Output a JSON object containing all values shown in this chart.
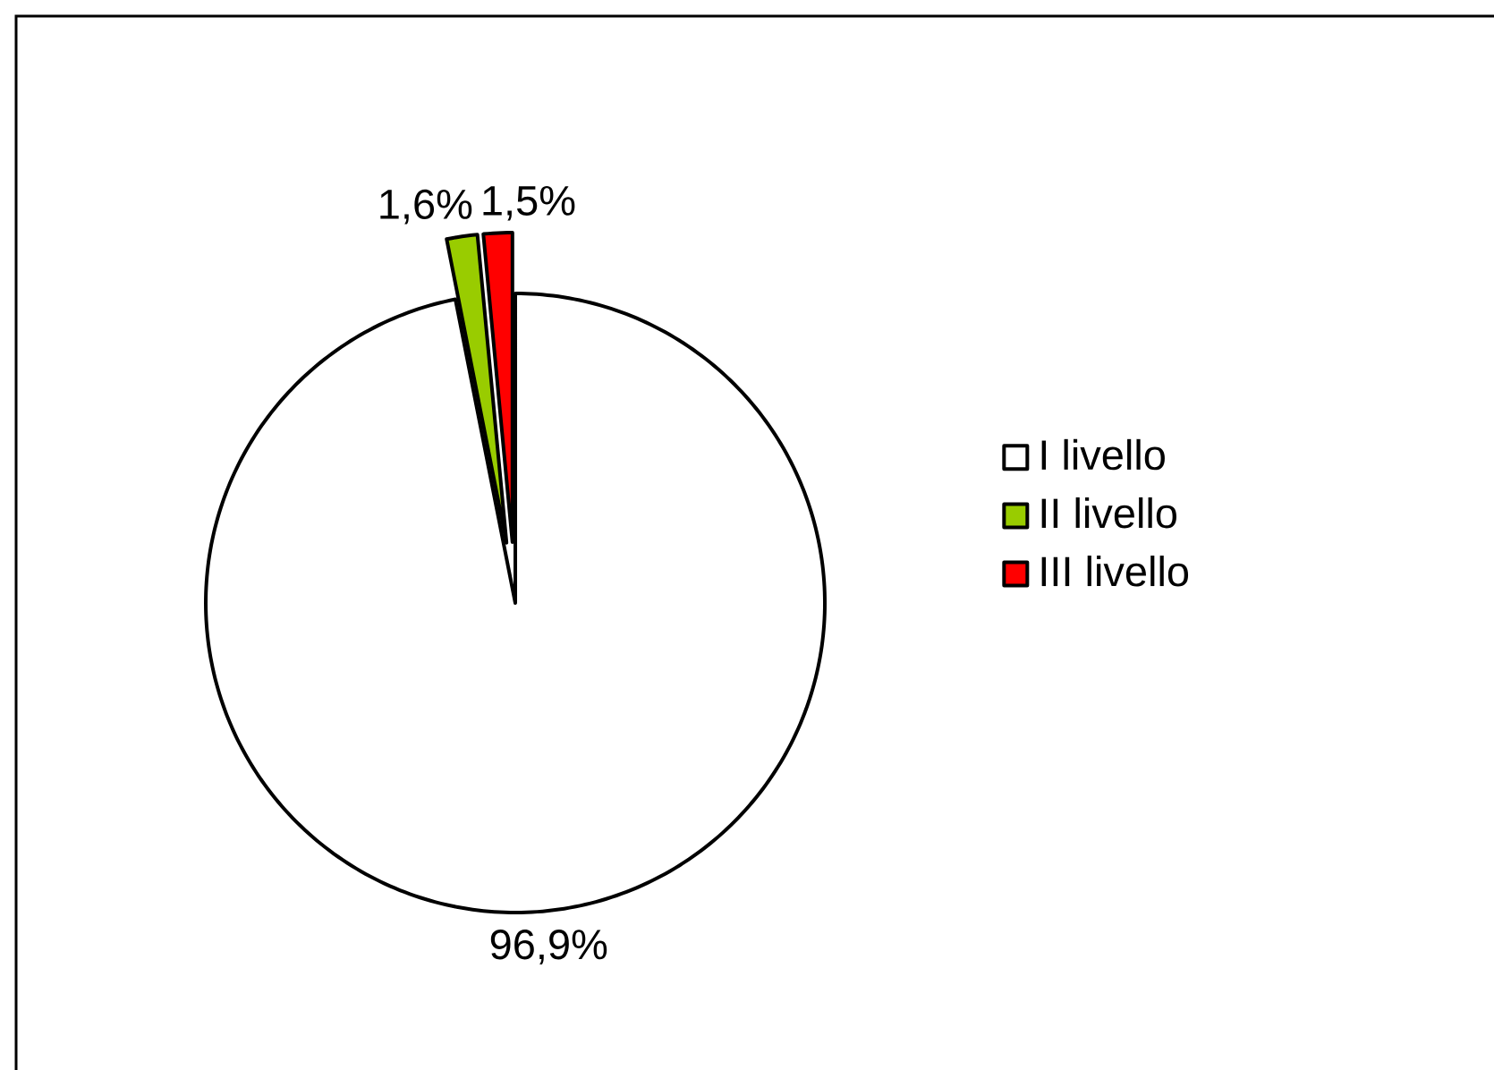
{
  "chart_data": {
    "type": "pie",
    "categories": [
      "I livello",
      "II livello",
      "III livello"
    ],
    "values": [
      96.9,
      1.6,
      1.5
    ],
    "colors": [
      "#ffffff",
      "#99cc00",
      "#ff0000"
    ],
    "value_labels": [
      "96,9%",
      "1,6%",
      "1,5%"
    ],
    "legend": "right"
  }
}
